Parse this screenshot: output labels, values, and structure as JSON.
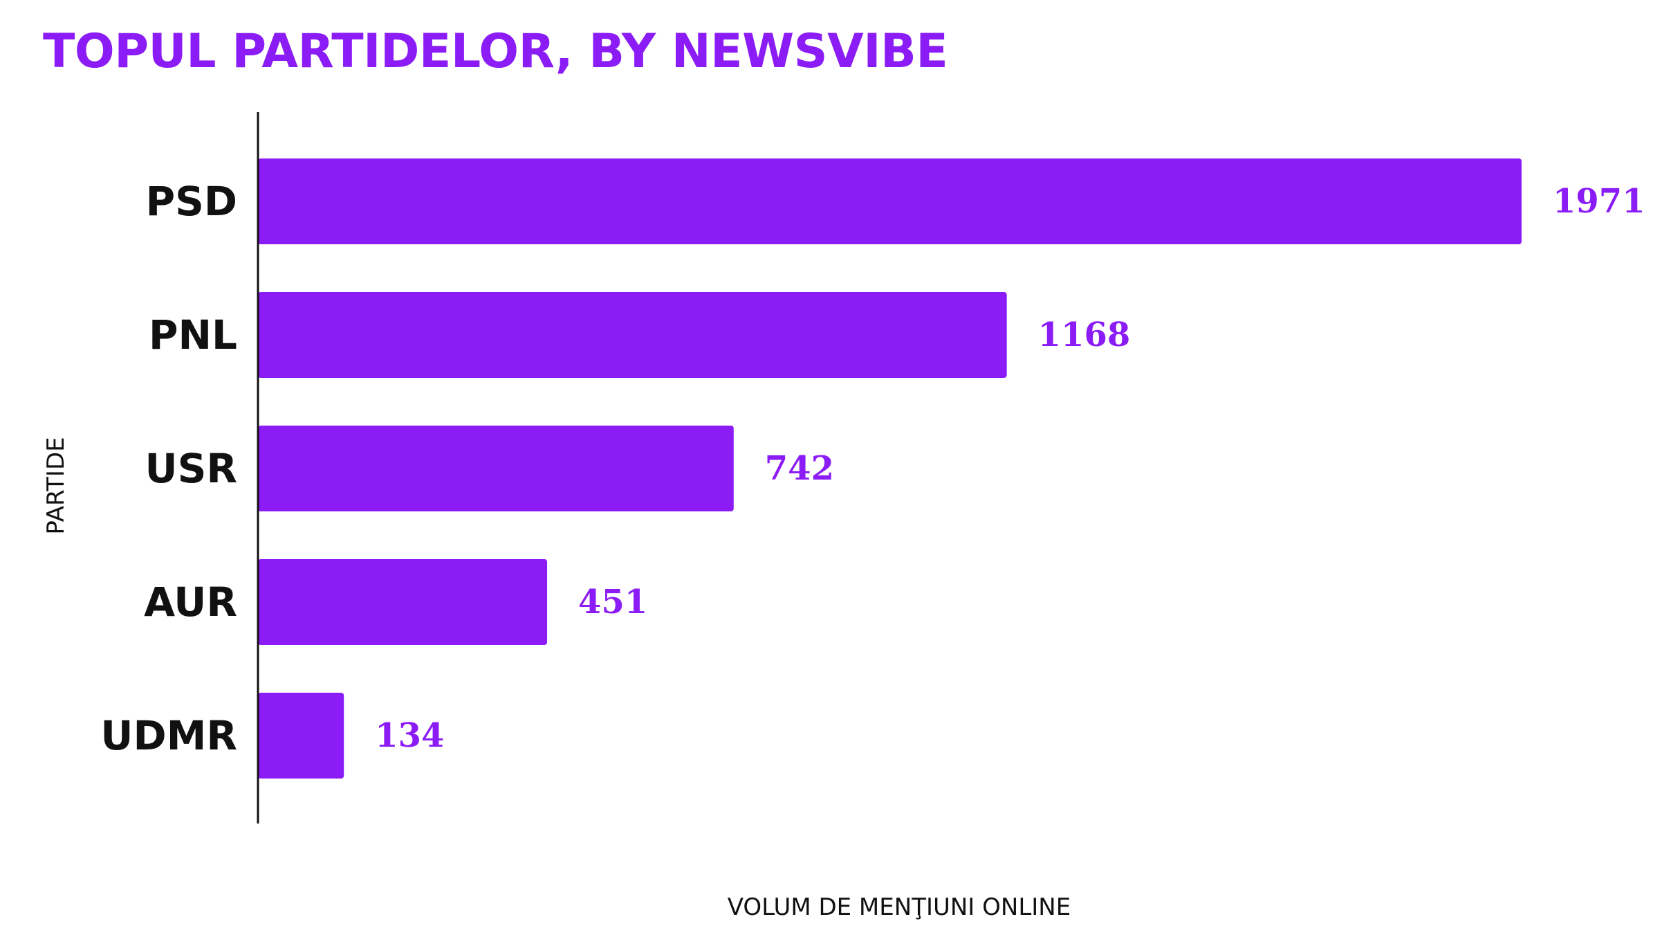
{
  "chart_data": {
    "type": "bar",
    "orientation": "horizontal",
    "title": "TOPUL PARTIDELOR, BY NEWSVIBE",
    "xlabel": "VOLUM DE MENŢIUNI ONLINE",
    "ylabel": "PARTIDE",
    "categories": [
      "PSD",
      "PNL",
      "USR",
      "AUR",
      "UDMR"
    ],
    "values": [
      1971,
      1168,
      742,
      451,
      134
    ],
    "data_labels": [
      "1971",
      "1168",
      "742",
      "451",
      "134"
    ],
    "xlim": [
      0,
      1971
    ],
    "grid": false,
    "legend": "none",
    "colors": {
      "bar": "#8B1CF5",
      "title": "#8B1CF5",
      "data_label": "#8B1CF5",
      "axis": "#111111"
    }
  }
}
